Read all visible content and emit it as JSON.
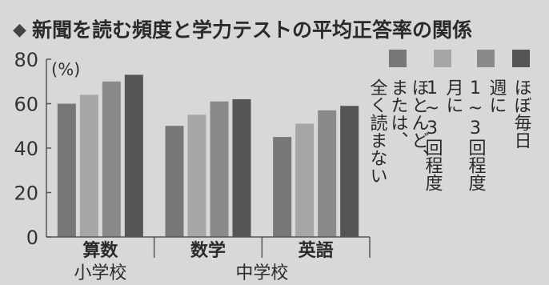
{
  "chart_data": {
    "type": "bar",
    "title": "新聞を読む頻度と学力テストの平均正答率の関係",
    "title_marker": "◆",
    "unit_label": "(%)",
    "ylim": [
      0,
      80
    ],
    "yticks": [
      0,
      20,
      40,
      60,
      80
    ],
    "grid": false,
    "legend_position": "right",
    "categories": [
      "算数",
      "数学",
      "英語"
    ],
    "group_labels": [
      {
        "label": "小学校",
        "categories": [
          "算数"
        ]
      },
      {
        "label": "中学校",
        "categories": [
          "数学",
          "英語"
        ]
      }
    ],
    "series": [
      {
        "name": "ほとんど、または、全く読まない",
        "color": "#777777",
        "values": [
          60,
          50,
          45
        ]
      },
      {
        "name": "月に1~3回程度",
        "color": "#a6a6a6",
        "values": [
          64,
          55,
          51
        ]
      },
      {
        "name": "週に1~3回程度",
        "color": "#8a8a8a",
        "values": [
          70,
          61,
          57
        ]
      },
      {
        "name": "ほぼ毎日",
        "color": "#555555",
        "values": [
          73,
          62,
          59
        ]
      }
    ],
    "legend": [
      {
        "text": "ほとんど、\nまたは、\n全く読まない",
        "color": "#777777"
      },
      {
        "text": "月に\n1~3回程度",
        "color": "#a6a6a6"
      },
      {
        "text": "週に\n1~3回程度",
        "color": "#8a8a8a"
      },
      {
        "text": "ほぼ毎日",
        "color": "#555555"
      }
    ]
  }
}
